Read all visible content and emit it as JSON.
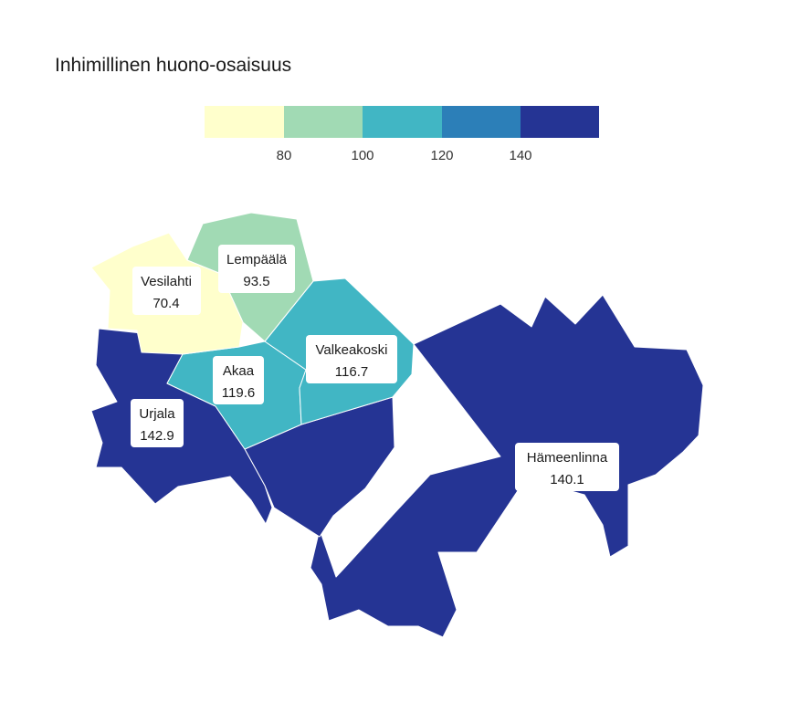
{
  "title": "Inhimillinen huono-osaisuus",
  "legend": {
    "bins": [
      {
        "color": "#ffffcc"
      },
      {
        "color": "#a1dab4"
      },
      {
        "color": "#41b6c4"
      },
      {
        "color": "#2c7fb8"
      },
      {
        "color": "#253494"
      }
    ],
    "ticks": [
      "80",
      "100",
      "120",
      "140"
    ]
  },
  "regions": [
    {
      "name": "Vesilahti",
      "value": "70.4",
      "color": "#ffffcc"
    },
    {
      "name": "Lempäälä",
      "value": "93.5",
      "color": "#a1dab4"
    },
    {
      "name": "Akaa",
      "value": "119.6",
      "color": "#41b6c4"
    },
    {
      "name": "Valkeakoski",
      "value": "116.7",
      "color": "#41b6c4"
    },
    {
      "name": "Urjala",
      "value": "142.9",
      "color": "#253494"
    },
    {
      "name": "Hämeenlinna",
      "value": "140.1",
      "color": "#253494"
    }
  ]
}
